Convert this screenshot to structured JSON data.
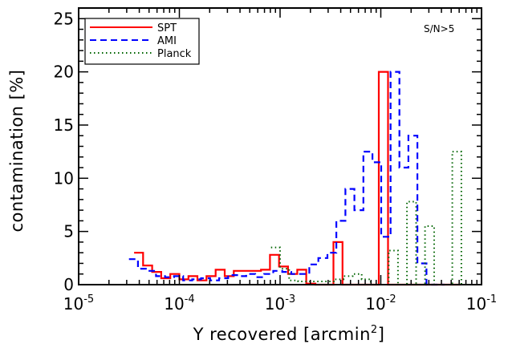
{
  "chart_data": {
    "type": "line",
    "step": true,
    "x_scale": "log",
    "xlim": [
      1e-05,
      0.1
    ],
    "ylim": [
      0,
      26
    ],
    "xlabel": "Y recovered [arcmin",
    "xlabel_sup": "2",
    "xlabel_close": "]",
    "ylabel": "contamination [%]",
    "x_ticks": [
      {
        "base": "10",
        "exp": "-5",
        "value": 1e-05
      },
      {
        "base": "10",
        "exp": "-4",
        "value": 0.0001
      },
      {
        "base": "10",
        "exp": "-3",
        "value": 0.001
      },
      {
        "base": "10",
        "exp": "-2",
        "value": 0.01
      },
      {
        "base": "10",
        "exp": "-1",
        "value": 0.1
      }
    ],
    "y_ticks": [
      {
        "label": "0",
        "value": 0
      },
      {
        "label": "5",
        "value": 5
      },
      {
        "label": "10",
        "value": 10
      },
      {
        "label": "15",
        "value": 15
      },
      {
        "label": "20",
        "value": 20
      },
      {
        "label": "25",
        "value": 25
      }
    ],
    "annotation": "S/N>5",
    "legend_position": "top-left",
    "series": [
      {
        "name": "SPT",
        "color": "#ff0000",
        "dash": "solid",
        "edges": [
          3.55e-05,
          4.36e-05,
          5.37e-05,
          6.61e-05,
          8.13e-05,
          0.0001,
          0.000123,
          0.000151,
          0.000186,
          0.000229,
          0.000282,
          0.000347,
          0.000427,
          0.000525,
          0.000646,
          0.000794,
          0.000977,
          0.0012,
          0.00148,
          0.00182,
          0.00224,
          0.00275,
          0.00339,
          0.00417,
          0.00513,
          0.00631,
          0.00776,
          0.00955,
          0.0118,
          0.0145,
          0.0178,
          0.0219,
          0.027,
          0.0332,
          0.0408,
          0.0502,
          0.0617
        ],
        "values": [
          3.0,
          1.8,
          1.2,
          0.6,
          1.0,
          0.5,
          0.8,
          0.4,
          0.8,
          1.4,
          0.8,
          1.3,
          1.3,
          1.3,
          1.4,
          2.8,
          1.7,
          1.0,
          1.4,
          0.1,
          0.0,
          0.0,
          4.0,
          0.0,
          0.0,
          0.0,
          0.0,
          20.0,
          0.0,
          0.0,
          0.0,
          0.0,
          0.0,
          0.0,
          0.0,
          0.0
        ]
      },
      {
        "name": "AMI",
        "color": "#0000ff",
        "dash": "dashed",
        "edges": [
          3.16e-05,
          3.88e-05,
          4.77e-05,
          5.86e-05,
          7.2e-05,
          8.85e-05,
          0.000109,
          0.000134,
          0.000164,
          0.000202,
          0.000248,
          0.000305,
          0.000375,
          0.000461,
          0.000566,
          0.000696,
          0.000855,
          0.00105,
          0.00129,
          0.00159,
          0.00195,
          0.0024,
          0.00295,
          0.00362,
          0.00445,
          0.00547,
          0.00672,
          0.00826,
          0.0101,
          0.0125,
          0.0153,
          0.0188,
          0.0231,
          0.0284,
          0.0349,
          0.0429
        ],
        "values": [
          2.4,
          1.5,
          1.3,
          0.8,
          0.7,
          0.8,
          0.4,
          0.5,
          0.6,
          0.4,
          0.6,
          0.9,
          0.8,
          1.0,
          0.7,
          1.0,
          1.3,
          1.2,
          1.0,
          1.0,
          1.9,
          2.5,
          3.0,
          6.0,
          9.0,
          7.0,
          12.5,
          11.5,
          4.5,
          20.0,
          11.0,
          14.0,
          2.0,
          0.0,
          0.0
        ]
      },
      {
        "name": "Planck",
        "color": "#006400",
        "dash": "dotted",
        "edges": [
          0.000813,
          0.001,
          0.00123,
          0.00151,
          0.00186,
          0.00229,
          0.00282,
          0.00347,
          0.00427,
          0.00525,
          0.00646,
          0.00794,
          0.00977,
          0.012,
          0.0148,
          0.0182,
          0.0224,
          0.0275,
          0.0339,
          0.0417,
          0.0513,
          0.0631,
          0.0776,
          0.0955
        ],
        "values": [
          3.5,
          1.5,
          0.4,
          0.3,
          0.3,
          0.3,
          0.3,
          0.5,
          0.8,
          1.0,
          0.5,
          0.0,
          0.0,
          3.2,
          0.0,
          7.8,
          0.0,
          5.5,
          0.0,
          0.0,
          12.5,
          0.0,
          0.0
        ]
      }
    ]
  }
}
